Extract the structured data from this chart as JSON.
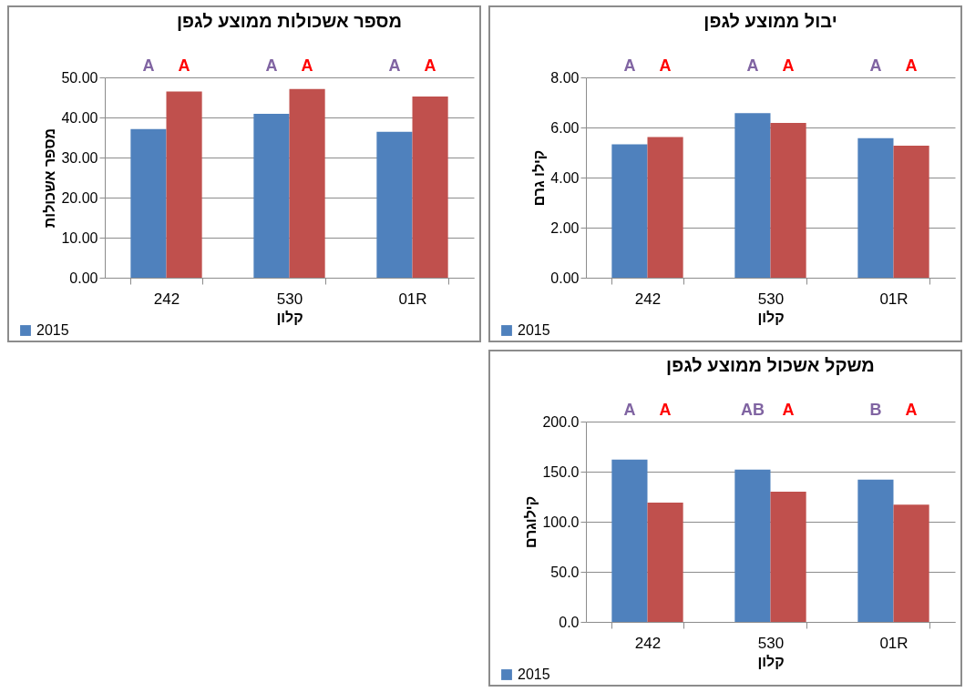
{
  "chart_data": [
    {
      "type": "bar",
      "title": "מספר אשכולות ממוצע לגפן",
      "xlabel": "קלון",
      "ylabel": "מספר אשכולות",
      "categories": [
        "242",
        "530",
        "01R"
      ],
      "series": [
        {
          "name": "2015",
          "color": "#4f81bd",
          "values": [
            37.1,
            40.9,
            36.4
          ]
        },
        {
          "color": "#c0504d",
          "values": [
            46.5,
            47.1,
            45.2
          ]
        }
      ],
      "ylim": [
        0,
        50
      ],
      "yticks": [
        {
          "value": 0,
          "label": "0.00"
        },
        {
          "value": 10,
          "label": "10.00"
        },
        {
          "value": 20,
          "label": "20.00"
        },
        {
          "value": 30,
          "label": "30.00"
        },
        {
          "value": 40,
          "label": "40.00"
        },
        {
          "value": 50,
          "label": "50.00"
        }
      ],
      "grid": "y",
      "legend": "bottom left",
      "annotations": [
        "A",
        "A",
        "A",
        "A",
        "A",
        "A"
      ]
    },
    {
      "type": "bar",
      "title": "יבול ממוצע לגפן",
      "xlabel": "קלון",
      "ylabel": "קילו גרם",
      "categories": [
        "242",
        "530",
        "01R"
      ],
      "series": [
        {
          "name": "2015",
          "color": "#4f81bd",
          "values": [
            5.33,
            6.57,
            5.57
          ]
        },
        {
          "color": "#c0504d",
          "values": [
            5.62,
            6.18,
            5.27
          ]
        }
      ],
      "ylim": [
        0,
        8
      ],
      "yticks": [
        {
          "value": 0,
          "label": "0.00"
        },
        {
          "value": 2,
          "label": "2.00"
        },
        {
          "value": 4,
          "label": "4.00"
        },
        {
          "value": 6,
          "label": "6.00"
        },
        {
          "value": 8,
          "label": "8.00"
        }
      ],
      "grid": "y",
      "legend": "bottom left",
      "annotations": [
        "A",
        "A",
        "A",
        "A",
        "A",
        "A"
      ]
    },
    {
      "type": "bar",
      "title": "משקל אשכול ממוצע לגפן",
      "xlabel": "קלון",
      "ylabel": "קילוגרם",
      "categories": [
        "242",
        "530",
        "01R"
      ],
      "series": [
        {
          "name": "2015",
          "color": "#4f81bd",
          "values": [
            162,
            152,
            142
          ]
        },
        {
          "color": "#c0504d",
          "values": [
            119,
            130,
            117
          ]
        }
      ],
      "ylim": [
        0,
        200
      ],
      "yticks": [
        {
          "value": 0,
          "label": "0.0"
        },
        {
          "value": 50,
          "label": "50.0"
        },
        {
          "value": 100,
          "label": "100.0"
        },
        {
          "value": 150,
          "label": "150.0"
        },
        {
          "value": 200,
          "label": "200.0"
        }
      ],
      "grid": "y",
      "legend": "bottom left",
      "annotations": [
        "A",
        "A",
        "AB",
        "A",
        "B",
        "A"
      ]
    }
  ]
}
